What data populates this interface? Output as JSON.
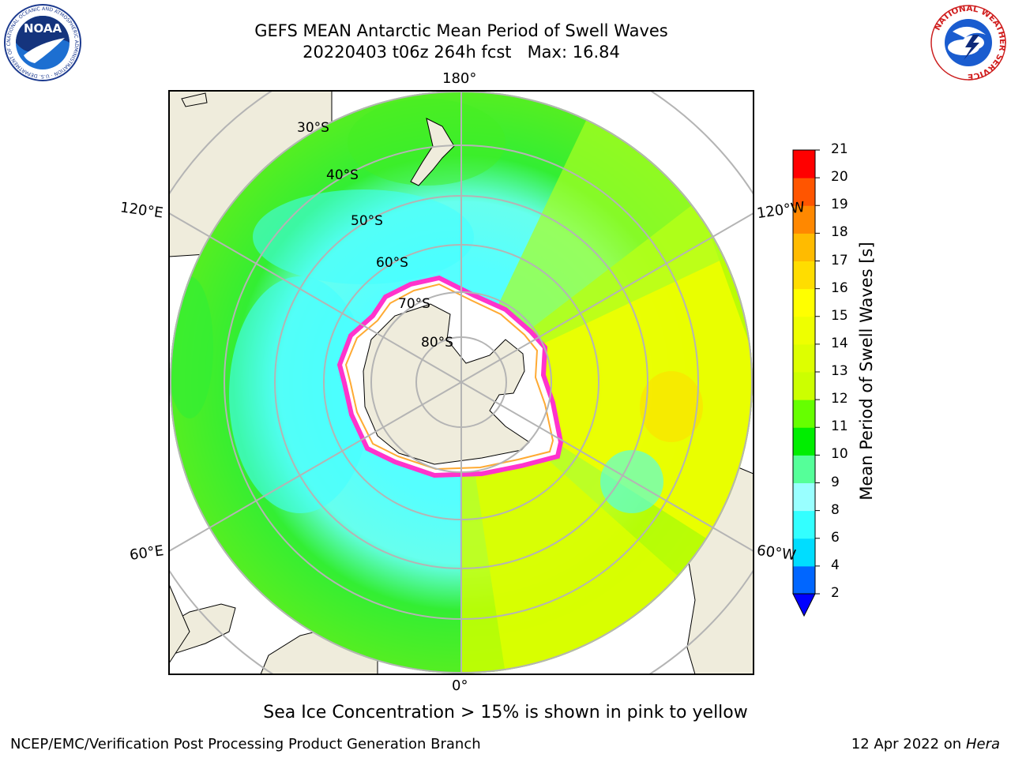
{
  "title": {
    "line1": "GEFS MEAN Antarctic Mean Period of Swell Waves",
    "line2": "20220403 t06z 264h fcst   Max: 16.84"
  },
  "map": {
    "projection": "south-polar-stereographic",
    "lon_labels": {
      "top": "180°",
      "bottom": "0°",
      "upper_left": "120°E",
      "upper_right": "120°W",
      "lower_left": "60°E",
      "lower_right": "60°W"
    },
    "lat_labels": [
      "30°S",
      "40°S",
      "50°S",
      "60°S",
      "70°S",
      "80°S"
    ],
    "land_color": "#efecdc",
    "ocean_background_color": "#ffffff",
    "gridline_color": "#b4b4b4",
    "ice_edge_colors": [
      "#ff33cc",
      "#ffaa33",
      "#ffff66"
    ]
  },
  "colorbar": {
    "label": "Mean Period of Swell Waves [s]",
    "ticks": [
      "2",
      "4",
      "6",
      "8",
      "9",
      "10",
      "11",
      "12",
      "13",
      "14",
      "15",
      "16",
      "17",
      "18",
      "19",
      "20",
      "21"
    ],
    "colors": [
      "#0066ff",
      "#00ddff",
      "#33ffff",
      "#99ffff",
      "#55ff99",
      "#00ee00",
      "#66ff00",
      "#ccff00",
      "#ddff00",
      "#eeff00",
      "#ffff00",
      "#ffdd00",
      "#ffbb00",
      "#ff8800",
      "#ff5500",
      "#ff0000"
    ],
    "under_color": "#0000ff"
  },
  "footer": {
    "note": "Sea Ice Concentration > 15% is shown in pink to yellow",
    "credit": "NCEP/EMC/Verification Post Processing Product Generation Branch",
    "date": "12 Apr 2022 on",
    "system": "Hera"
  },
  "logos": {
    "left": {
      "text": "NOAA",
      "ring_text": "NATIONAL OCEANIC AND ATMOSPHERIC ADMINISTRATION · U.S. DEPARTMENT OF COMMERCE"
    },
    "right": {
      "ring_text": "NATIONAL WEATHER SERVICE"
    }
  }
}
